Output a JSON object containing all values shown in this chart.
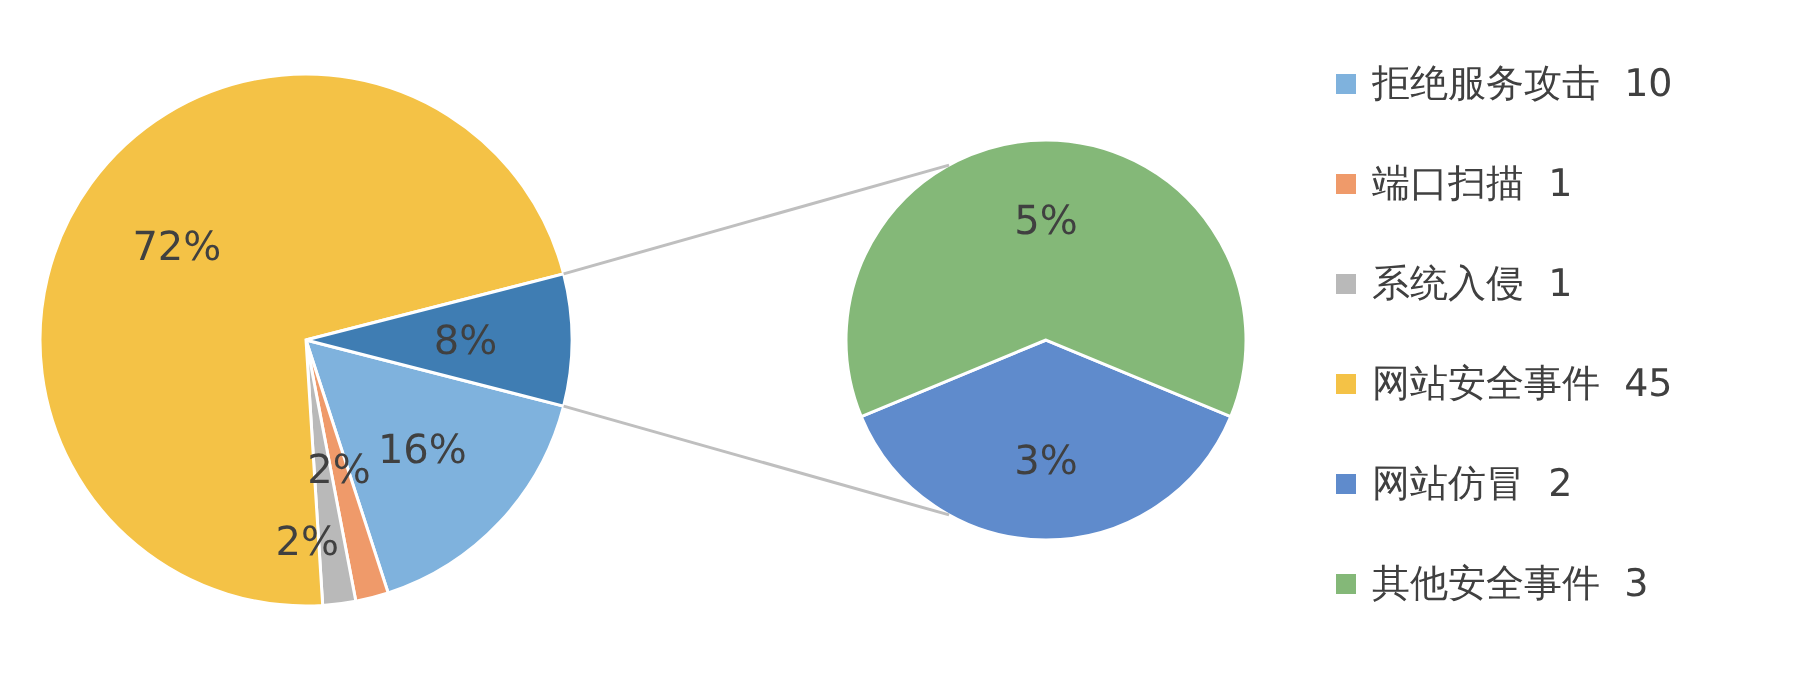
{
  "chart_data": [
    {
      "type": "pie",
      "categories": [
        "拒绝服务攻击  10",
        "端口扫描  1",
        "系统入侵  1",
        "网站安全事件  45",
        null
      ],
      "values": [
        16,
        2,
        2,
        72,
        8
      ],
      "colors": [
        "#7fb2dd",
        "#ef9a6a",
        "#b9b9b9",
        "#f4c246",
        "#3f7db3"
      ],
      "value_labels": [
        "16%",
        "2%",
        "2%",
        "72%",
        "8%"
      ],
      "legend": "right"
    },
    {
      "type": "pie",
      "categories": [
        "网站仿冒  2",
        "其他安全事件  3"
      ],
      "values": [
        3,
        5
      ],
      "colors": [
        "#5f8bcc",
        "#84b878"
      ],
      "value_labels": [
        "3%",
        "5%"
      ],
      "legend": "right"
    }
  ]
}
